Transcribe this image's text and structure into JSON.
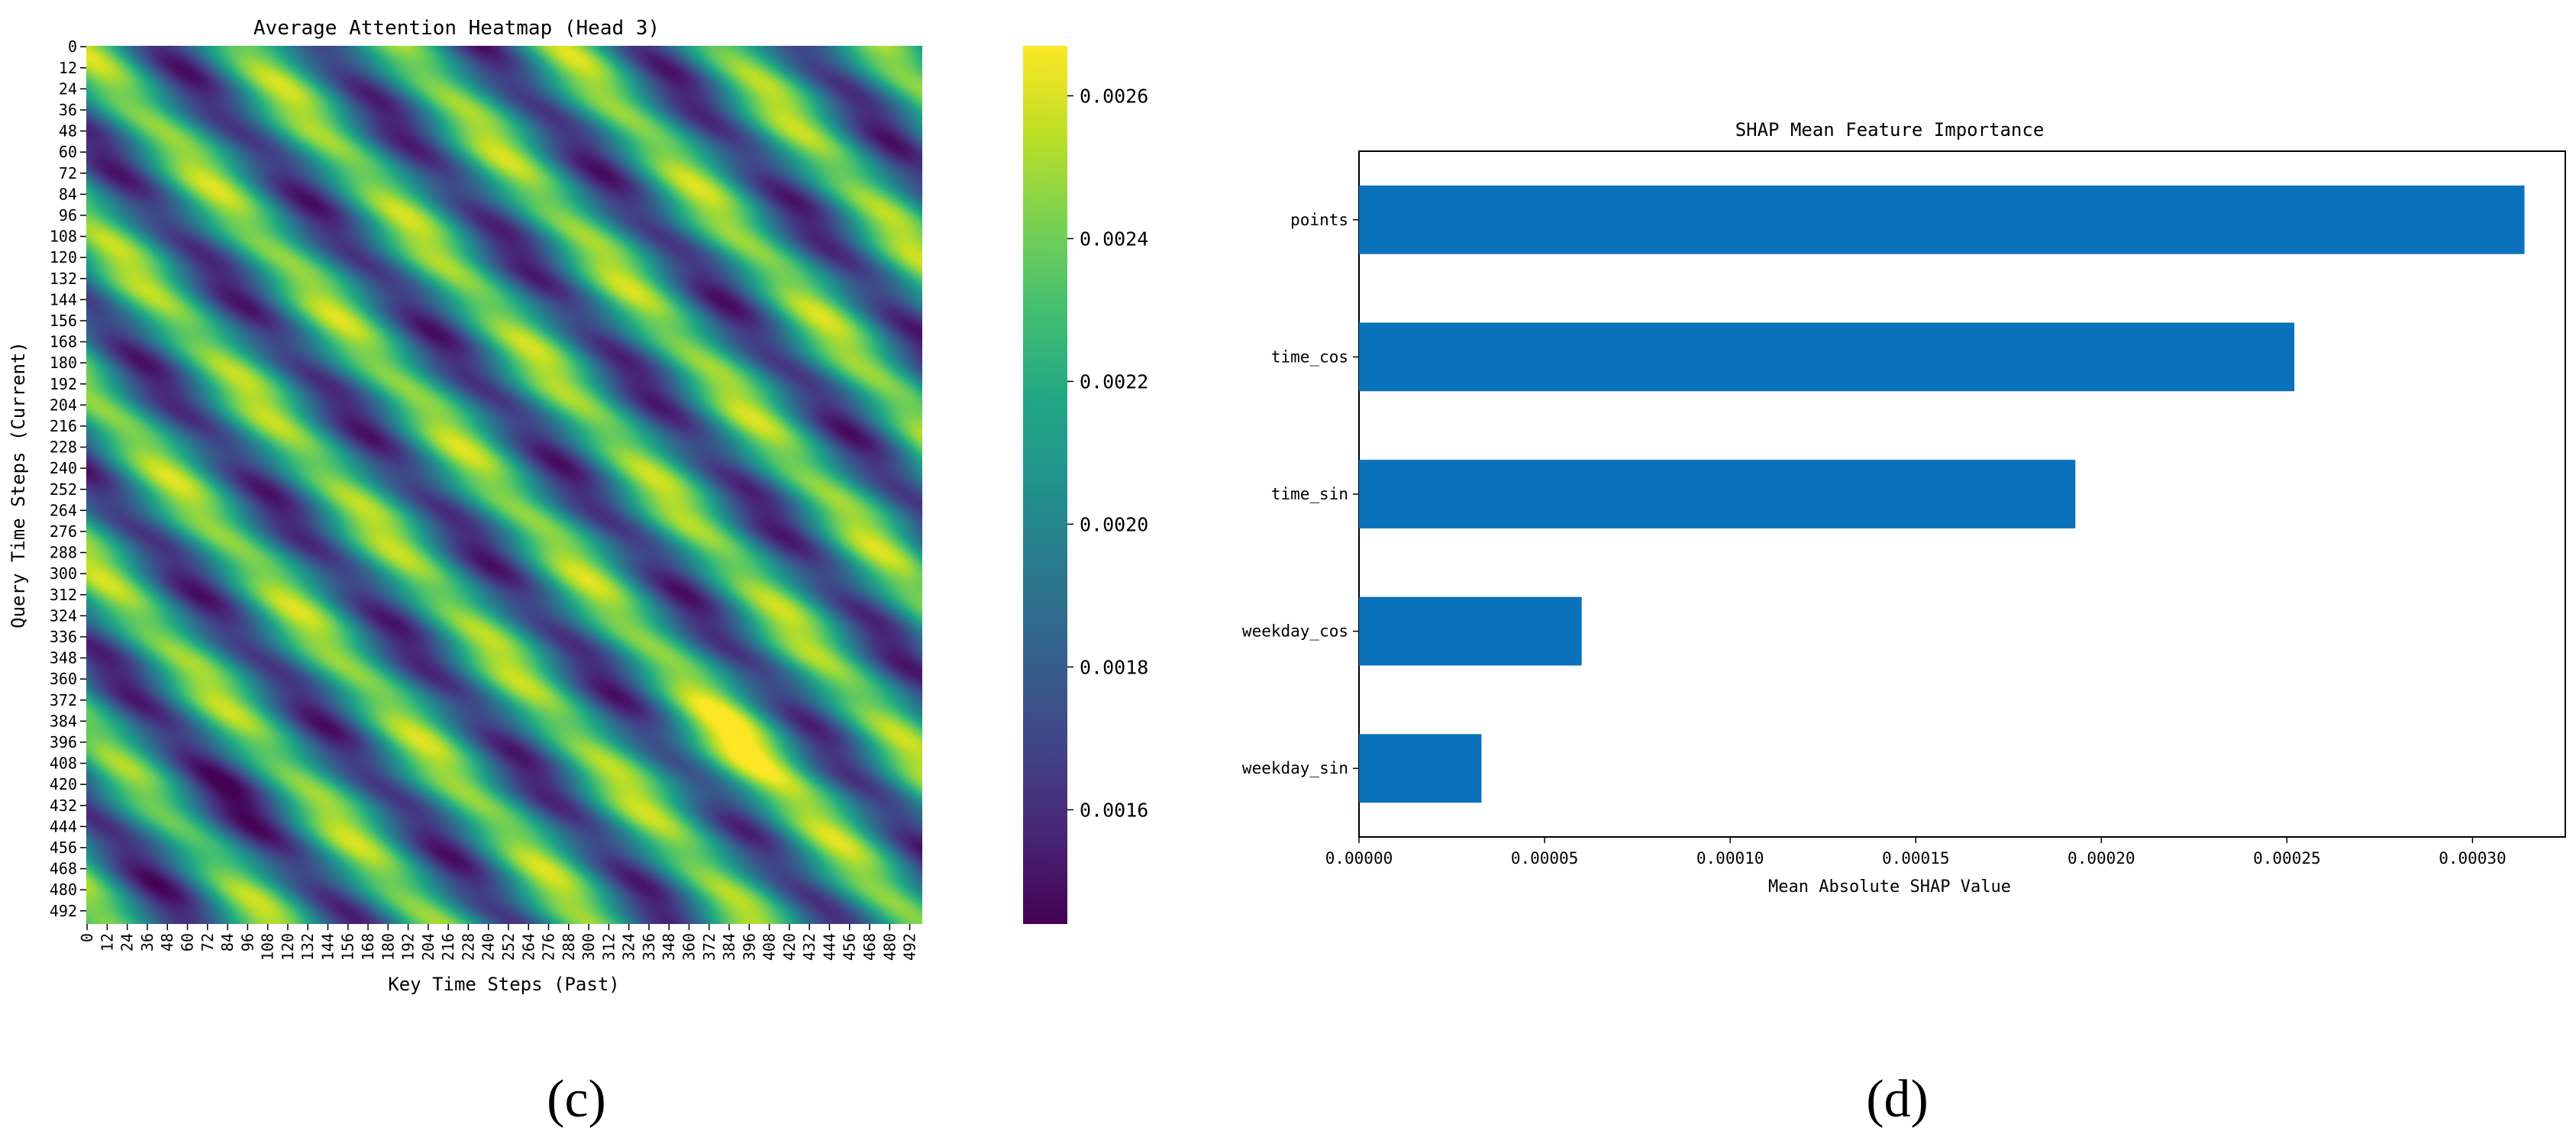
{
  "chart_data": [
    {
      "type": "heatmap",
      "title": "Average Attention Heatmap (Head 3)",
      "xlabel": "Key Time Steps (Past)",
      "ylabel": "Query Time Steps (Current)",
      "x_ticks": [
        "0",
        "12",
        "24",
        "36",
        "48",
        "60",
        "72",
        "84",
        "96",
        "108",
        "120",
        "132",
        "144",
        "156",
        "168",
        "180",
        "192",
        "204",
        "216",
        "228",
        "240",
        "252",
        "264",
        "276",
        "288",
        "300",
        "312",
        "324",
        "336",
        "348",
        "360",
        "372",
        "384",
        "396",
        "408",
        "420",
        "432",
        "444",
        "456",
        "468",
        "480",
        "492"
      ],
      "y_ticks": [
        "0",
        "12",
        "24",
        "36",
        "48",
        "60",
        "72",
        "84",
        "96",
        "108",
        "120",
        "132",
        "144",
        "156",
        "168",
        "180",
        "192",
        "204",
        "216",
        "228",
        "240",
        "252",
        "264",
        "276",
        "288",
        "300",
        "312",
        "324",
        "336",
        "348",
        "360",
        "372",
        "384",
        "396",
        "408",
        "420",
        "432",
        "444",
        "456",
        "468",
        "480",
        "492"
      ],
      "size": 500,
      "colorbar": {
        "colormap": "viridis",
        "range": [
          0.00144,
          0.00267
        ],
        "ticks": [
          "0.0016",
          "0.0018",
          "0.0020",
          "0.0022",
          "0.0024",
          "0.0026"
        ],
        "tick_values": [
          0.0016,
          0.0018,
          0.002,
          0.0022,
          0.0024,
          0.0026
        ]
      },
      "pattern": "diagonal bands with a period of about 96 time steps; brightest (~0.0026) near query 400-410, key 380-400; darkest (~0.00145) near query 420-440, key 40-80",
      "panel_label": "(c)"
    },
    {
      "type": "bar",
      "orientation": "horizontal",
      "title": "SHAP Mean Feature Importance",
      "xlabel": "Mean Absolute SHAP Value",
      "ylabel": "",
      "categories": [
        "points",
        "time_cos",
        "time_sin",
        "weekday_cos",
        "weekday_sin"
      ],
      "values": [
        0.000314,
        0.000252,
        0.000193,
        6e-05,
        3.3e-05
      ],
      "xlim": [
        0,
        0.000325
      ],
      "x_ticks": [
        "0.00000",
        "0.00005",
        "0.00010",
        "0.00015",
        "0.00020",
        "0.00025",
        "0.00030"
      ],
      "x_tick_values": [
        0,
        5e-05,
        0.0001,
        0.00015,
        0.0002,
        0.00025,
        0.0003
      ],
      "bar_color": "#0a72ba",
      "panel_label": "(d)"
    }
  ]
}
